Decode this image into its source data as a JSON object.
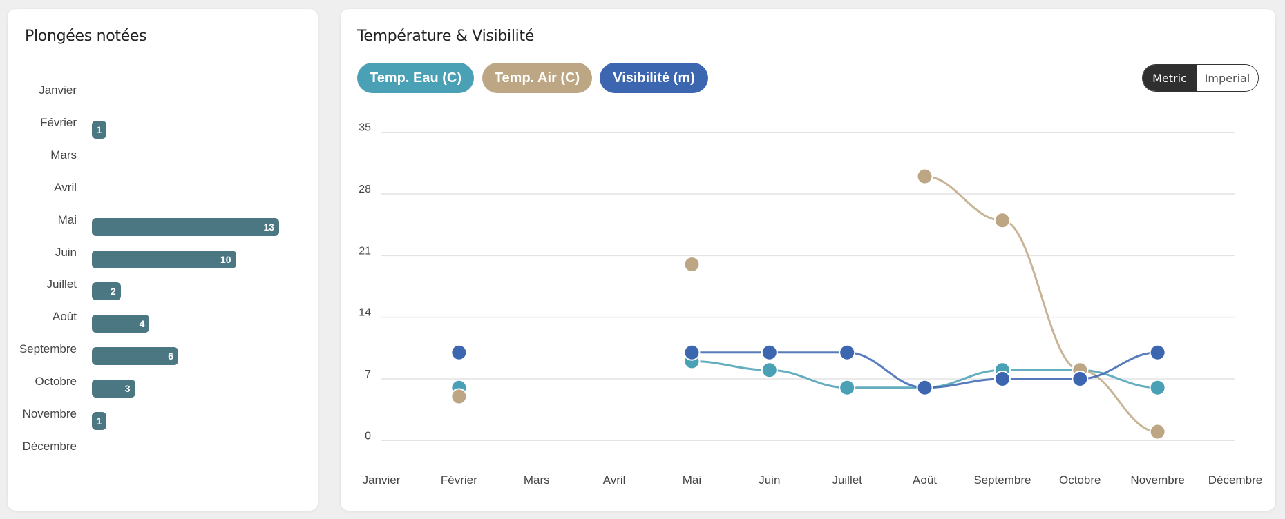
{
  "left_panel": {
    "title": "Plongées notées"
  },
  "right_panel": {
    "title": "Température & Visibilité",
    "series_buttons": [
      {
        "label": "Temp. Eau (C)",
        "color": "#4aa0b5"
      },
      {
        "label": "Temp. Air (C)",
        "color": "#bda683"
      },
      {
        "label": "Visibilité (m)",
        "color": "#3c66b0"
      }
    ],
    "unit_toggle": {
      "options": [
        "Metric",
        "Imperial"
      ],
      "selected": "Metric"
    }
  },
  "chart_data": [
    {
      "type": "bar",
      "orientation": "horizontal",
      "title": "Plongées notées",
      "categories": [
        "Janvier",
        "Février",
        "Mars",
        "Avril",
        "Mai",
        "Juin",
        "Juillet",
        "Août",
        "Septembre",
        "Octobre",
        "Novembre",
        "Décembre"
      ],
      "values": [
        null,
        1,
        null,
        null,
        13,
        10,
        2,
        4,
        6,
        3,
        1,
        null
      ],
      "color": "#4a7782",
      "data_labels": true
    },
    {
      "type": "line",
      "title": "Température & Visibilité",
      "categories": [
        "Janvier",
        "Février",
        "Mars",
        "Avril",
        "Mai",
        "Juin",
        "Juillet",
        "Août",
        "Septembre",
        "Octobre",
        "Novembre",
        "Décembre"
      ],
      "ylim": [
        0,
        35
      ],
      "yticks": [
        0,
        7,
        14,
        21,
        28,
        35
      ],
      "grid": true,
      "smooth": true,
      "series": [
        {
          "name": "Temp. Eau (C)",
          "color": "#4aa0b5",
          "values": [
            null,
            6,
            null,
            null,
            9,
            8,
            6,
            6,
            8,
            8,
            6,
            null
          ]
        },
        {
          "name": "Temp. Air (C)",
          "color": "#bda683",
          "values": [
            null,
            5,
            null,
            null,
            20,
            null,
            null,
            30,
            25,
            8,
            1,
            null
          ]
        },
        {
          "name": "Visibilité (m)",
          "color": "#3c66b0",
          "values": [
            null,
            10,
            null,
            null,
            10,
            10,
            10,
            6,
            7,
            7,
            10,
            null
          ]
        }
      ]
    }
  ]
}
